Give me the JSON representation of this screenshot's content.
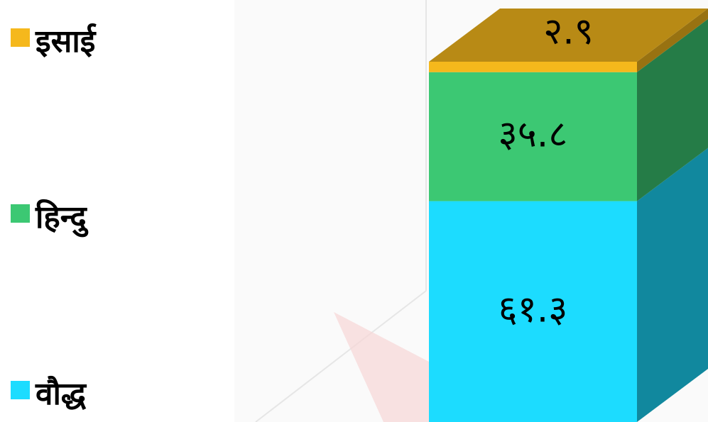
{
  "chart_data": {
    "type": "bar",
    "stacked": true,
    "three_d": true,
    "series": [
      {
        "name": "इसाई",
        "color": "#f5b81c",
        "values": [
          2.9
        ],
        "value_labels": [
          "२.९"
        ]
      },
      {
        "name": "हिन्दु",
        "color": "#3cc873",
        "values": [
          35.8
        ],
        "value_labels": [
          "३५.८"
        ]
      },
      {
        "name": "वौद्ध",
        "color": "#1cdcff",
        "values": [
          61.3
        ],
        "value_labels": [
          "६१.३"
        ]
      }
    ]
  }
}
